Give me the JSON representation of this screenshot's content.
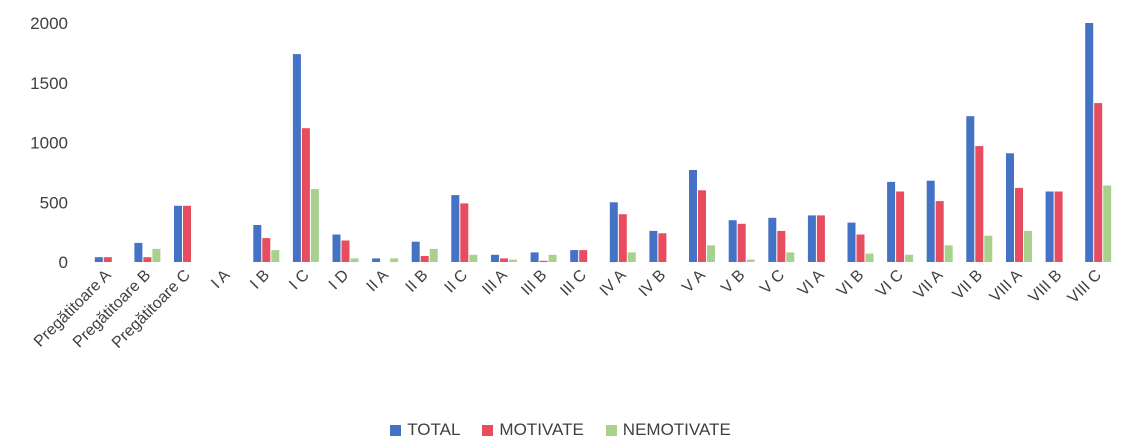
{
  "chart_data": {
    "type": "bar",
    "categories": [
      "Pregătitoare A",
      "Pregătitoare B",
      "Pregătitoare C",
      "I A",
      "I B",
      "I C",
      "I D",
      "II A",
      "II B",
      "II C",
      "III A",
      "III B",
      "III C",
      "IV A",
      "IV B",
      "V A",
      "V B",
      "V C",
      "VI A",
      "VI B",
      "VI C",
      "VII A",
      "VII B",
      "VIII A",
      "VIII B",
      "VIII C"
    ],
    "series": [
      {
        "name": "TOTAL",
        "color": "#4472c4",
        "values": [
          40,
          160,
          470,
          0,
          310,
          1740,
          230,
          30,
          170,
          560,
          60,
          80,
          100,
          500,
          260,
          770,
          350,
          370,
          390,
          330,
          670,
          680,
          1220,
          910,
          590,
          2000
        ]
      },
      {
        "name": "MOTIVATE",
        "color": "#e84c5f",
        "values": [
          40,
          40,
          470,
          0,
          200,
          1120,
          180,
          0,
          50,
          490,
          30,
          10,
          100,
          400,
          240,
          600,
          320,
          260,
          390,
          230,
          590,
          510,
          970,
          620,
          590,
          1330
        ]
      },
      {
        "name": "NEMOTIVATE",
        "color": "#a9d18e",
        "values": [
          0,
          110,
          0,
          0,
          100,
          610,
          30,
          30,
          110,
          60,
          20,
          60,
          0,
          80,
          0,
          140,
          20,
          80,
          0,
          70,
          60,
          140,
          220,
          260,
          0,
          640
        ]
      }
    ],
    "yticks": [
      "0",
      "500",
      "1000",
      "1500",
      "2000"
    ],
    "ylim": [
      0,
      2000
    ],
    "grid": false,
    "legend_position": "bottom"
  }
}
